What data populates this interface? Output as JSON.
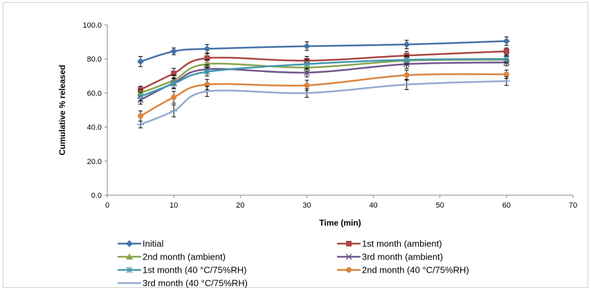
{
  "chart_data": {
    "type": "line",
    "title": "",
    "xlabel": "Time (min)",
    "ylabel": "Cumulative % released",
    "xlim": [
      0,
      70
    ],
    "ylim": [
      0,
      100
    ],
    "x_ticks": [
      "0",
      "10",
      "20",
      "30",
      "40",
      "50",
      "60",
      "70"
    ],
    "y_ticks": [
      "0.0",
      "20.0",
      "40.0",
      "60.0",
      "80.0",
      "100.0"
    ],
    "grid": false,
    "smooth": true,
    "legend_position": "bottom",
    "x": [
      5,
      10,
      15,
      30,
      45,
      60
    ],
    "series": [
      {
        "name": "Initial",
        "color": "#4572A7",
        "marker": "diamond",
        "values": [
          78.5,
          84.5,
          86.0,
          87.5,
          88.5,
          90.5
        ],
        "errors": [
          3.0,
          2.0,
          2.5,
          2.5,
          2.5,
          2.5
        ]
      },
      {
        "name": "1st month (ambient)",
        "color": "#AA4643",
        "marker": "square",
        "values": [
          62.0,
          71.5,
          80.5,
          79.0,
          82.0,
          84.5
        ],
        "errors": [
          2.0,
          3.0,
          2.5,
          2.5,
          2.5,
          2.0
        ]
      },
      {
        "name": "2nd month (ambient)",
        "color": "#89A54E",
        "marker": "triangle",
        "values": [
          60.0,
          67.5,
          77.0,
          75.0,
          79.0,
          79.5
        ],
        "errors": [
          2.0,
          3.0,
          2.5,
          2.5,
          2.5,
          2.0
        ]
      },
      {
        "name": "3rd month (ambient)",
        "color": "#71588F",
        "marker": "x",
        "values": [
          56.0,
          66.0,
          74.0,
          72.0,
          77.0,
          78.0
        ],
        "errors": [
          2.5,
          3.0,
          2.5,
          2.5,
          2.5,
          2.0
        ]
      },
      {
        "name": "1st month (40 °C/75%RH)",
        "color": "#4198AF",
        "marker": "star",
        "values": [
          58.0,
          65.5,
          72.5,
          77.0,
          79.5,
          80.0
        ],
        "errors": [
          2.5,
          3.0,
          2.5,
          2.5,
          2.5,
          2.0
        ]
      },
      {
        "name": "2nd month (40 °C/75%RH)",
        "color": "#DB843D",
        "marker": "circle",
        "values": [
          46.5,
          57.5,
          65.0,
          64.5,
          70.5,
          71.0
        ],
        "errors": [
          3.0,
          3.5,
          3.0,
          3.0,
          3.0,
          2.5
        ]
      },
      {
        "name": "3rd month (40 °C/75%RH)",
        "color": "#93A9CF",
        "marker": "dash",
        "values": [
          41.5,
          49.5,
          61.0,
          60.0,
          65.0,
          67.0
        ],
        "errors": [
          2.0,
          3.5,
          3.0,
          2.5,
          3.0,
          2.5
        ]
      }
    ]
  }
}
